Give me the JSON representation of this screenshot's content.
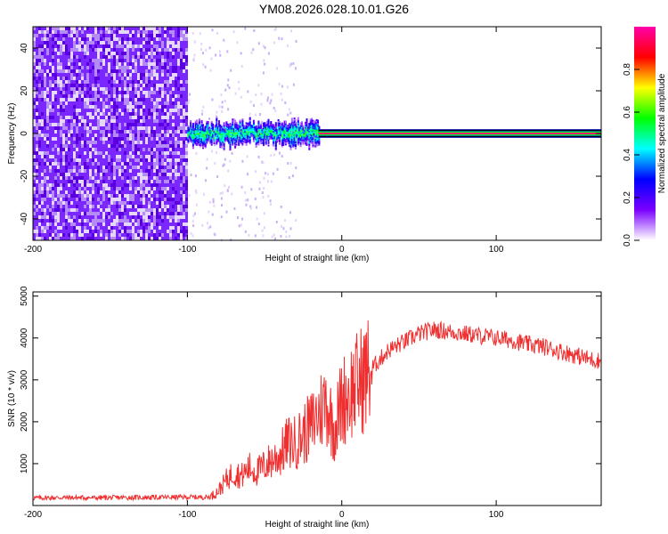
{
  "title": "YM08.2026.028.10.01.G26",
  "chart_data": [
    {
      "type": "heatmap",
      "xlabel": "Height of straight line (km)",
      "ylabel": "Frequency (Hz)",
      "xlim": [
        -200,
        168
      ],
      "ylim": [
        -50,
        50
      ],
      "xticks": [
        -200,
        -100,
        0,
        100
      ],
      "yticks": [
        40,
        20,
        0,
        -20,
        -40
      ],
      "colorbar": {
        "label": "Normalized spectral amplitude",
        "range": [
          0,
          1
        ],
        "ticks": [
          "0.0",
          "0.2",
          "0.4",
          "0.6",
          "0.8"
        ],
        "colors": [
          "#ffffff",
          "#7a00ff",
          "#0000ff",
          "#00ffff",
          "#00ff00",
          "#ffff00",
          "#ff0000",
          "#ff00aa"
        ]
      },
      "regions": [
        {
          "x": [
            -200,
            -100
          ],
          "description_level": "low",
          "frequency_spread_hz": [
            -50,
            50
          ],
          "amplitude": 0.08
        },
        {
          "x": [
            -100,
            -15
          ],
          "frequency_spread_hz": [
            -5,
            7
          ],
          "amplitude": 0.4
        },
        {
          "x": [
            -15,
            168
          ],
          "frequency_spread_hz": [
            -1,
            1
          ],
          "amplitude": 0.95
        }
      ]
    },
    {
      "type": "line",
      "xlabel": "Height of straight line (km)",
      "ylabel": "SNR (10 * v/v)",
      "xlim": [
        -200,
        168
      ],
      "ylim": [
        0,
        5100
      ],
      "xticks": [
        -200,
        -100,
        0,
        100
      ],
      "yticks": [
        1000,
        2000,
        3000,
        4000,
        5000
      ],
      "color": "#f03030",
      "series": [
        {
          "x": [
            -200,
            -180,
            -160,
            -140,
            -120,
            -100,
            -90,
            -85,
            -80,
            -75,
            -70,
            -65,
            -60,
            -55,
            -50,
            -45,
            -40,
            -35,
            -30,
            -25,
            -20,
            -15,
            -10,
            -5,
            0,
            10,
            20,
            30,
            40,
            50,
            60,
            70,
            80,
            90,
            100,
            110,
            120,
            130,
            140,
            150,
            160,
            168
          ],
          "y": [
            180,
            190,
            185,
            190,
            195,
            200,
            200,
            210,
            350,
            600,
            800,
            700,
            900,
            800,
            950,
            1100,
            1200,
            1500,
            1500,
            1700,
            1900,
            2200,
            2500,
            1800,
            2500,
            2900,
            3300,
            3700,
            3900,
            4100,
            4200,
            4150,
            4100,
            4050,
            4000,
            3950,
            3850,
            3800,
            3700,
            3600,
            3500,
            3450
          ]
        }
      ]
    }
  ]
}
